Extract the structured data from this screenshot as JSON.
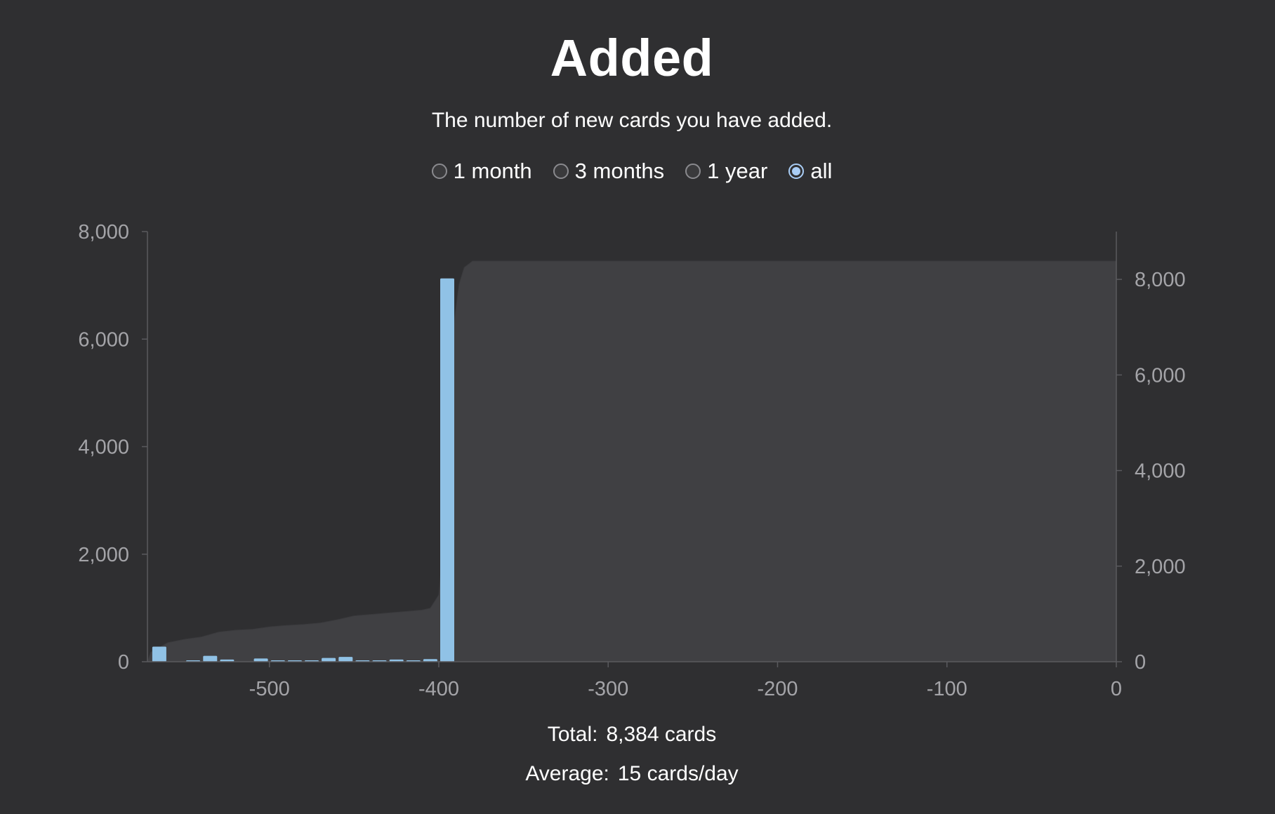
{
  "header": {
    "title": "Added",
    "subtitle": "The number of new cards you have added."
  },
  "range_options": [
    {
      "label": "1 month",
      "checked": false
    },
    {
      "label": "3 months",
      "checked": false
    },
    {
      "label": "1 year",
      "checked": false
    },
    {
      "label": "all",
      "checked": true
    }
  ],
  "stats": {
    "total_label": "Total:",
    "total_value": "8,384 cards",
    "average_label": "Average:",
    "average_value": "15 cards/day"
  },
  "chart_data": {
    "type": "bar",
    "xlim": [
      -572,
      0
    ],
    "x_ticks": [
      -500,
      -400,
      -300,
      -200,
      -100,
      0
    ],
    "x_tick_labels": [
      "-500",
      "-400",
      "-300",
      "-200",
      "-100",
      "0"
    ],
    "ylim_left": [
      0,
      8000
    ],
    "y_ticks_left": [
      0,
      2000,
      4000,
      6000,
      8000
    ],
    "y_tick_labels_left": [
      "0",
      "2,000",
      "4,000",
      "6,000",
      "8,000"
    ],
    "ylim_right": [
      0,
      9000
    ],
    "y_ticks_right": [
      0,
      2000,
      4000,
      6000,
      8000
    ],
    "y_tick_labels_right": [
      "0",
      "2,000",
      "4,000",
      "6,000",
      "8,000"
    ],
    "bar_color": "#90c2e6",
    "area_color": "#404043",
    "bars": [
      {
        "x": -565,
        "value": 280
      },
      {
        "x": -545,
        "value": 20
      },
      {
        "x": -535,
        "value": 110
      },
      {
        "x": -525,
        "value": 40
      },
      {
        "x": -505,
        "value": 60
      },
      {
        "x": -495,
        "value": 20
      },
      {
        "x": -485,
        "value": 15
      },
      {
        "x": -475,
        "value": 10
      },
      {
        "x": -465,
        "value": 70
      },
      {
        "x": -455,
        "value": 90
      },
      {
        "x": -445,
        "value": 15
      },
      {
        "x": -435,
        "value": 10
      },
      {
        "x": -425,
        "value": 40
      },
      {
        "x": -415,
        "value": 10
      },
      {
        "x": -405,
        "value": 50
      },
      {
        "x": -395,
        "value": 7130
      }
    ],
    "cumulative": [
      {
        "x": -572,
        "value": 0
      },
      {
        "x": -570,
        "value": 200
      },
      {
        "x": -560,
        "value": 400
      },
      {
        "x": -550,
        "value": 470
      },
      {
        "x": -540,
        "value": 520
      },
      {
        "x": -530,
        "value": 620
      },
      {
        "x": -520,
        "value": 660
      },
      {
        "x": -510,
        "value": 680
      },
      {
        "x": -500,
        "value": 730
      },
      {
        "x": -490,
        "value": 760
      },
      {
        "x": -480,
        "value": 780
      },
      {
        "x": -470,
        "value": 810
      },
      {
        "x": -460,
        "value": 880
      },
      {
        "x": -450,
        "value": 960
      },
      {
        "x": -440,
        "value": 990
      },
      {
        "x": -430,
        "value": 1020
      },
      {
        "x": -420,
        "value": 1050
      },
      {
        "x": -410,
        "value": 1080
      },
      {
        "x": -405,
        "value": 1120
      },
      {
        "x": -400,
        "value": 1400
      },
      {
        "x": -397,
        "value": 2600
      },
      {
        "x": -394,
        "value": 5200
      },
      {
        "x": -391,
        "value": 7100
      },
      {
        "x": -388,
        "value": 7900
      },
      {
        "x": -385,
        "value": 8250
      },
      {
        "x": -380,
        "value": 8384
      },
      {
        "x": 0,
        "value": 8384
      }
    ]
  }
}
